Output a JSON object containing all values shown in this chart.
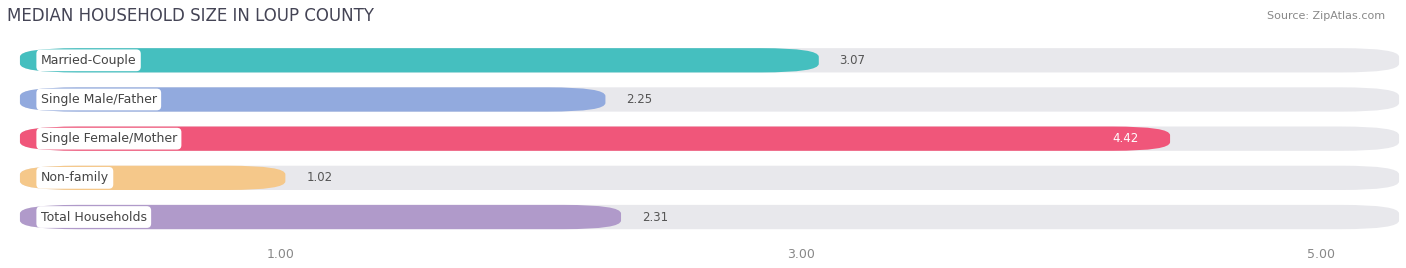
{
  "title": "MEDIAN HOUSEHOLD SIZE IN LOUP COUNTY",
  "source": "Source: ZipAtlas.com",
  "categories": [
    "Married-Couple",
    "Single Male/Father",
    "Single Female/Mother",
    "Non-family",
    "Total Households"
  ],
  "values": [
    3.07,
    2.25,
    4.42,
    1.02,
    2.31
  ],
  "bar_colors": [
    "#45bfbf",
    "#92aade",
    "#f0567a",
    "#f5c88a",
    "#b09aca"
  ],
  "background_color": "#ffffff",
  "bar_bg_color": "#e8e8ec",
  "label_bg_color": "#ffffff",
  "xlim_min": 0.0,
  "xlim_max": 5.3,
  "xticks": [
    1.0,
    3.0,
    5.0
  ],
  "xtick_labels": [
    "1.00",
    "3.00",
    "5.00"
  ],
  "title_fontsize": 12,
  "label_fontsize": 9,
  "value_fontsize": 8.5,
  "source_fontsize": 8,
  "value_color_inside": "#ffffff",
  "value_color_outside": "#555555",
  "inside_threshold": 4.0
}
